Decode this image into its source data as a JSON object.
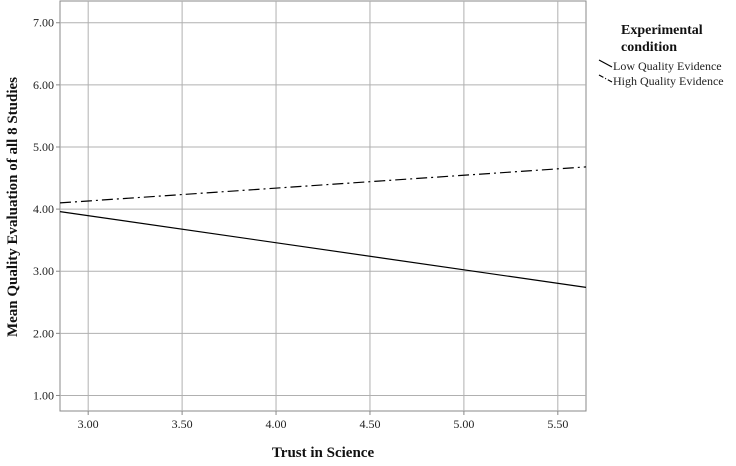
{
  "chart_data": {
    "type": "line",
    "title": "",
    "xlabel": "Trust in Science",
    "ylabel": "Mean Quality Evaluation of all 8 Studies",
    "xlim": [
      2.85,
      5.65
    ],
    "ylim": [
      0.75,
      7.35
    ],
    "x_ticks": [
      3.0,
      3.5,
      4.0,
      4.5,
      5.0,
      5.5
    ],
    "x_tick_labels": [
      "3.00",
      "3.50",
      "4.00",
      "4.50",
      "5.00",
      "5.50"
    ],
    "y_ticks": [
      1.0,
      2.0,
      3.0,
      4.0,
      5.0,
      6.0,
      7.0
    ],
    "y_tick_labels": [
      "1.00",
      "2.00",
      "3.00",
      "4.00",
      "5.00",
      "6.00",
      "7.00"
    ],
    "grid": true,
    "legend": {
      "title_lines": [
        "Experimental",
        "condition"
      ],
      "placement": "right"
    },
    "series": [
      {
        "name": "Low Quality Evidence",
        "x": [
          2.85,
          5.65
        ],
        "y": [
          3.96,
          2.74
        ],
        "line_style": "solid",
        "color": "#000000"
      },
      {
        "name": "High Quality Evidence",
        "x": [
          2.85,
          5.65
        ],
        "y": [
          4.1,
          4.68
        ],
        "line_style": "dash-dot",
        "color": "#000000"
      }
    ]
  }
}
